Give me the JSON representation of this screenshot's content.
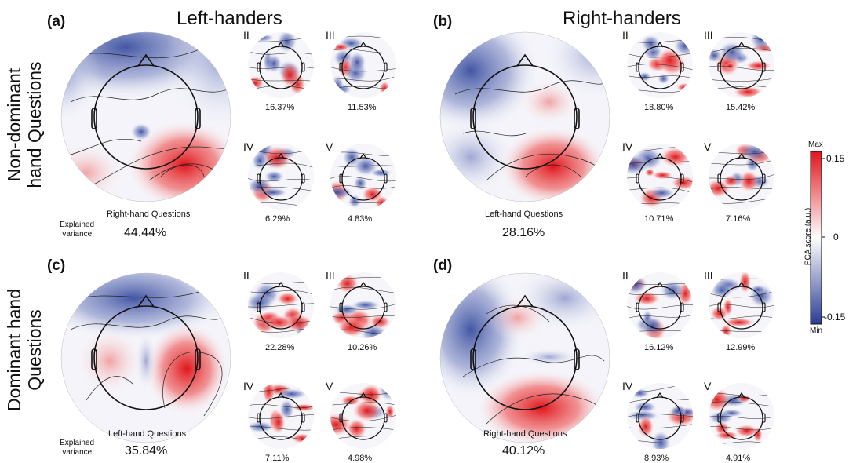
{
  "panels": {
    "a": {
      "letter": "(a)",
      "title": "Left-handers",
      "main": {
        "question": "Right-hand Questions",
        "variance": "44.44%"
      },
      "small": [
        {
          "num": "II",
          "variance": "16.37%"
        },
        {
          "num": "III",
          "variance": "11.53%"
        },
        {
          "num": "IV",
          "variance": "6.29%"
        },
        {
          "num": "V",
          "variance": "4.83%"
        }
      ]
    },
    "b": {
      "letter": "(b)",
      "title": "Right-handers",
      "main": {
        "question": "Left-hand Questions",
        "variance": "28.16%"
      },
      "small": [
        {
          "num": "II",
          "variance": "18.80%"
        },
        {
          "num": "III",
          "variance": "15.42%"
        },
        {
          "num": "IV",
          "variance": "10.71%"
        },
        {
          "num": "V",
          "variance": "7.16%"
        }
      ]
    },
    "c": {
      "letter": "(c)",
      "main": {
        "question": "Left-hand Questions",
        "variance": "35.84%"
      },
      "small": [
        {
          "num": "II",
          "variance": "22.28%"
        },
        {
          "num": "III",
          "variance": "10.26%"
        },
        {
          "num": "IV",
          "variance": "7.11%"
        },
        {
          "num": "V",
          "variance": "4.98%"
        }
      ]
    },
    "d": {
      "letter": "(d)",
      "main": {
        "question": "Right-hand Questions",
        "variance": "40.12%"
      },
      "small": [
        {
          "num": "II",
          "variance": "16.12%"
        },
        {
          "num": "III",
          "variance": "12.99%"
        },
        {
          "num": "IV",
          "variance": "8.93%"
        },
        {
          "num": "V",
          "variance": "4.91%"
        }
      ]
    }
  },
  "rows": {
    "top": "Non-dominant hand Questions",
    "bottom": "Dominant hand Questions"
  },
  "explained_variance_label": {
    "line1": "Explained",
    "line2": "variance:"
  },
  "colorbar": {
    "label": "PCA score (a.u.)",
    "max_label": "Max",
    "min_label": "Min",
    "ticks": [
      "0.15",
      "0",
      "-0.15"
    ],
    "colors": {
      "max": "#e0161b",
      "mid": "#ffffff",
      "min": "#2a3c95"
    }
  }
}
